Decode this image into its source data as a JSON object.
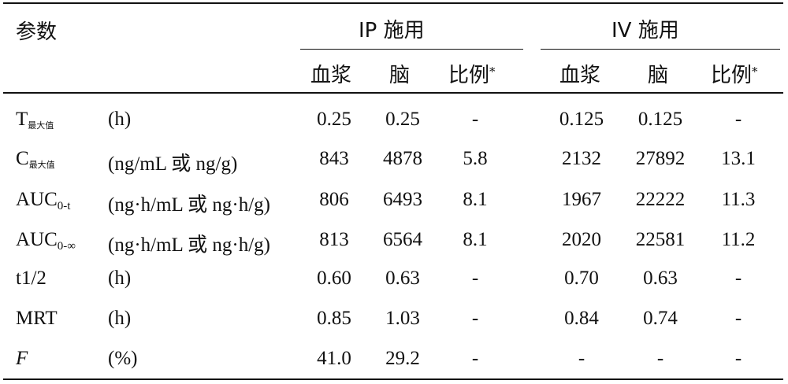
{
  "header": {
    "param_label": "参数",
    "ip_group": "IP 施用",
    "iv_group": "IV 施用",
    "sub_plasma": "血浆",
    "sub_brain": "脑",
    "sub_ratio": "比例",
    "ratio_star": "*"
  },
  "rows": [
    {
      "name": "T",
      "sub": "最大值",
      "sub_type": "cjk",
      "italic": false,
      "unit": "(h)",
      "ip": [
        "0.25",
        "0.25",
        "-"
      ],
      "iv": [
        "0.125",
        "0.125",
        "-"
      ]
    },
    {
      "name": "C",
      "sub": "最大值",
      "sub_type": "cjk",
      "italic": false,
      "unit": "(ng/mL 或 ng/g)",
      "ip": [
        "843",
        "4878",
        "5.8"
      ],
      "iv": [
        "2132",
        "27892",
        "13.1"
      ]
    },
    {
      "name": "AUC",
      "sub": "0-t",
      "sub_type": "lat",
      "italic": false,
      "unit": "(ng·h/mL 或 ng·h/g)",
      "ip": [
        "806",
        "6493",
        "8.1"
      ],
      "iv": [
        "1967",
        "22222",
        "11.3"
      ]
    },
    {
      "name": "AUC",
      "sub": "0-∞",
      "sub_type": "lat",
      "italic": false,
      "unit": "(ng·h/mL 或 ng·h/g)",
      "ip": [
        "813",
        "6564",
        "8.1"
      ],
      "iv": [
        "2020",
        "22581",
        "11.2"
      ]
    },
    {
      "name": "t1/2",
      "sub": "",
      "sub_type": "none",
      "italic": false,
      "unit": "(h)",
      "ip": [
        "0.60",
        "0.63",
        "-"
      ],
      "iv": [
        "0.70",
        "0.63",
        "-"
      ]
    },
    {
      "name": "MRT",
      "sub": "",
      "sub_type": "none",
      "italic": false,
      "unit": "(h)",
      "ip": [
        "0.85",
        "1.03",
        "-"
      ],
      "iv": [
        "0.84",
        "0.74",
        "-"
      ]
    },
    {
      "name": "F",
      "sub": "",
      "sub_type": "none",
      "italic": true,
      "unit": "(%)",
      "ip": [
        "41.0",
        "29.2",
        "-"
      ],
      "iv": [
        "-",
        "-",
        "-"
      ]
    }
  ]
}
